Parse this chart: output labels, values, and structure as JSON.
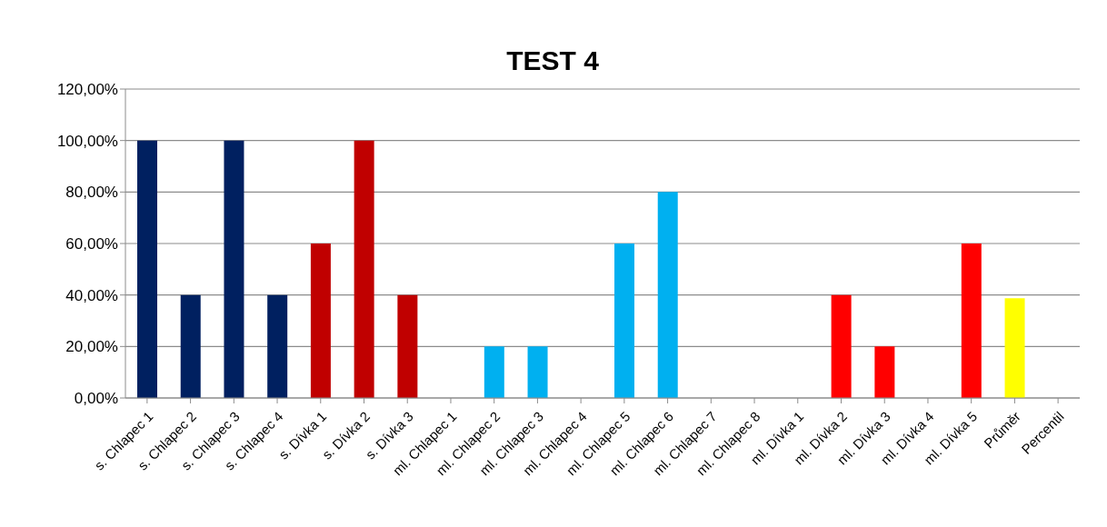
{
  "chart_data": {
    "type": "bar",
    "title": "TEST 4",
    "categories": [
      "s. Chlapec 1",
      "s. Chlapec 2",
      "s. Chlapec 3",
      "s. Chlapec 4",
      "s. Dívka 1",
      "s. Dívka 2",
      "s. Dívka 3",
      "ml. Chlapec 1",
      "ml. Chlapec 2",
      "ml. Chlapec 3",
      "ml. Chlapec 4",
      "ml. Chlapec 5",
      "ml. Chlapec 6",
      "ml. Chlapec 7",
      "ml. Chlapec 8",
      "ml. Dívka 1",
      "ml. Dívka 2",
      "ml. Dívka 3",
      "ml. Dívka 4",
      "ml. Dívka 5",
      "Průměr",
      "Percentil"
    ],
    "values": [
      100,
      40,
      100,
      40,
      60,
      100,
      40,
      0,
      20,
      20,
      0,
      60,
      80,
      0,
      0,
      0,
      40,
      20,
      0,
      60,
      38.7,
      0
    ],
    "colors": [
      "#002060",
      "#002060",
      "#002060",
      "#002060",
      "#c00000",
      "#c00000",
      "#c00000",
      "#00b0f0",
      "#00b0f0",
      "#00b0f0",
      "#00b0f0",
      "#00b0f0",
      "#00b0f0",
      "#00b0f0",
      "#00b0f0",
      "#ff0000",
      "#ff0000",
      "#ff0000",
      "#ff0000",
      "#ff0000",
      "#ffff00",
      "#ffff00"
    ],
    "ylim": [
      0,
      120
    ],
    "yticks": [
      {
        "value": 0,
        "label": "0,00%"
      },
      {
        "value": 20,
        "label": "20,00%"
      },
      {
        "value": 40,
        "label": "40,00%"
      },
      {
        "value": 60,
        "label": "60,00%"
      },
      {
        "value": 80,
        "label": "80,00%"
      },
      {
        "value": 100,
        "label": "100,00%"
      },
      {
        "value": 120,
        "label": "120,00%"
      }
    ],
    "grid": "y",
    "legend": false
  }
}
